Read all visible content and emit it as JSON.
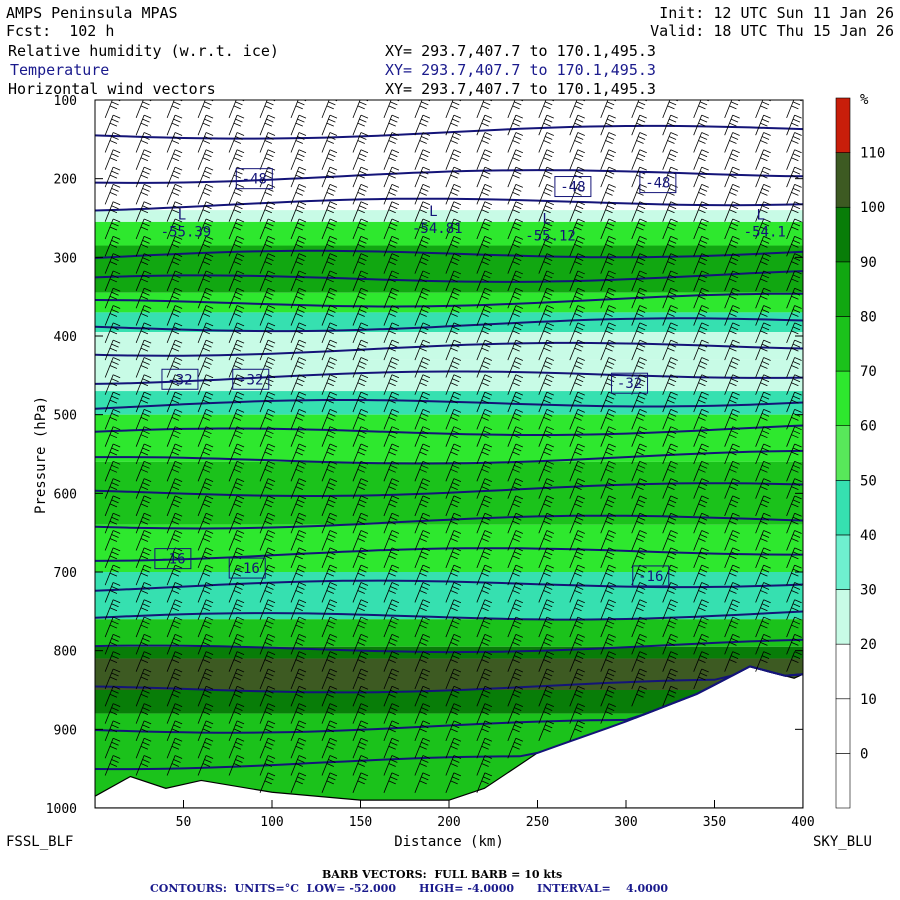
{
  "header": {
    "model": "AMPS Peninsula MPAS",
    "fcst": "Fcst:  102 h",
    "init": "Init: 12 UTC Sun 11 Jan 26",
    "valid": "Valid: 18 UTC Thu 15 Jan 26",
    "fields": [
      {
        "name": "Relative humidity (w.r.t. ice)",
        "xy": "XY= 293.7,407.7 to 170.1,495.3",
        "color": "#000000"
      },
      {
        "name": "Temperature",
        "xy": "XY= 293.7,407.7 to 170.1,495.3",
        "color": "#1a1a8c"
      },
      {
        "name": "Horizontal wind vectors",
        "xy": "XY= 293.7,407.7 to 170.1,495.3",
        "color": "#000000"
      }
    ]
  },
  "chart_data": {
    "type": "heatmap",
    "title": "AMPS Peninsula MPAS",
    "xlabel": "Distance (km)",
    "ylabel": "Pressure (hPa)",
    "x_ticks": [
      50,
      100,
      150,
      200,
      250,
      300,
      350,
      400
    ],
    "y_ticks": [
      100,
      200,
      300,
      400,
      500,
      600,
      700,
      800,
      900,
      1000
    ],
    "xlim": [
      0,
      400
    ],
    "ylim": [
      100,
      1000
    ],
    "endpoints": {
      "left": "FSSL_BLF",
      "right": "SKY_BLU"
    },
    "colorbar": {
      "unit": "%",
      "labels": [
        0,
        10,
        20,
        30,
        40,
        50,
        60,
        70,
        80,
        90,
        100,
        110
      ],
      "colors": [
        "#ffffff",
        "#ffffff",
        "#ffffff",
        "#c8fbe6",
        "#6ff0cf",
        "#36e0b0",
        "#58e85a",
        "#2ee82e",
        "#1bc21b",
        "#11a711",
        "#087d08",
        "#3d5a22",
        "#c81e0a"
      ]
    },
    "rh_layers": [
      {
        "p_top": 100,
        "p_bot": 240,
        "rh": 5
      },
      {
        "p_top": 240,
        "p_bot": 255,
        "rh": 35
      },
      {
        "p_top": 255,
        "p_bot": 285,
        "rh": 72
      },
      {
        "p_top": 285,
        "p_bot": 345,
        "rh": 95
      },
      {
        "p_top": 345,
        "p_bot": 370,
        "rh": 72
      },
      {
        "p_top": 370,
        "p_bot": 395,
        "rh": 55
      },
      {
        "p_top": 395,
        "p_bot": 430,
        "rh": 38
      },
      {
        "p_top": 430,
        "p_bot": 470,
        "rh": 30
      },
      {
        "p_top": 470,
        "p_bot": 500,
        "rh": 55
      },
      {
        "p_top": 500,
        "p_bot": 560,
        "rh": 75
      },
      {
        "p_top": 560,
        "p_bot": 640,
        "rh": 85
      },
      {
        "p_top": 640,
        "p_bot": 700,
        "rh": 78
      },
      {
        "p_top": 700,
        "p_bot": 760,
        "rh": 55
      },
      {
        "p_top": 760,
        "p_bot": 795,
        "rh": 80
      },
      {
        "p_top": 795,
        "p_bot": 810,
        "rh": 100
      },
      {
        "p_top": 810,
        "p_bot": 850,
        "rh": 115
      },
      {
        "p_top": 850,
        "p_bot": 880,
        "rh": 105
      },
      {
        "p_top": 880,
        "p_bot": 1000,
        "rh": 82
      }
    ],
    "terrain": [
      {
        "x": 0,
        "p": 985
      },
      {
        "x": 20,
        "p": 960
      },
      {
        "x": 40,
        "p": 975
      },
      {
        "x": 60,
        "p": 965
      },
      {
        "x": 100,
        "p": 980
      },
      {
        "x": 150,
        "p": 990
      },
      {
        "x": 200,
        "p": 990
      },
      {
        "x": 220,
        "p": 975
      },
      {
        "x": 250,
        "p": 930
      },
      {
        "x": 300,
        "p": 890
      },
      {
        "x": 340,
        "p": 855
      },
      {
        "x": 370,
        "p": 820
      },
      {
        "x": 395,
        "p": 835
      },
      {
        "x": 400,
        "p": 830
      }
    ],
    "isotherm_labels": [
      {
        "text": "-48",
        "x": 90,
        "p": 200
      },
      {
        "text": "-48",
        "x": 270,
        "p": 210
      },
      {
        "text": "-48",
        "x": 318,
        "p": 205
      },
      {
        "text": "-32",
        "x": 48,
        "p": 455
      },
      {
        "text": "-32",
        "x": 88,
        "p": 455
      },
      {
        "text": "-32",
        "x": 302,
        "p": 460
      },
      {
        "text": "-16",
        "x": 44,
        "p": 683
      },
      {
        "text": "-16",
        "x": 86,
        "p": 695
      },
      {
        "text": "-16",
        "x": 314,
        "p": 705
      }
    ],
    "lows": [
      {
        "text": "-55.39",
        "x": 48,
        "p": 270
      },
      {
        "text": "-54.81",
        "x": 190,
        "p": 265
      },
      {
        "text": "-55.12",
        "x": 254,
        "p": 275
      },
      {
        "text": "-54.1",
        "x": 375,
        "p": 270
      }
    ],
    "contours": {
      "units": "°C",
      "low": "-52.000",
      "high": "-4.0000",
      "interval": "4.0000"
    },
    "isotherm_pressures": [
      145,
      200,
      235,
      300,
      330,
      360,
      390,
      420,
      455,
      490,
      525,
      560,
      600,
      640,
      680,
      720,
      760,
      800,
      850,
      900,
      945
    ]
  },
  "footer": {
    "barb": "BARB VECTORS:  FULL BARB = 10 kts",
    "contours_line": "CONTOURS:  UNITS=°C  LOW= -52.000      HIGH= -4.0000      INTERVAL=    4.0000"
  }
}
